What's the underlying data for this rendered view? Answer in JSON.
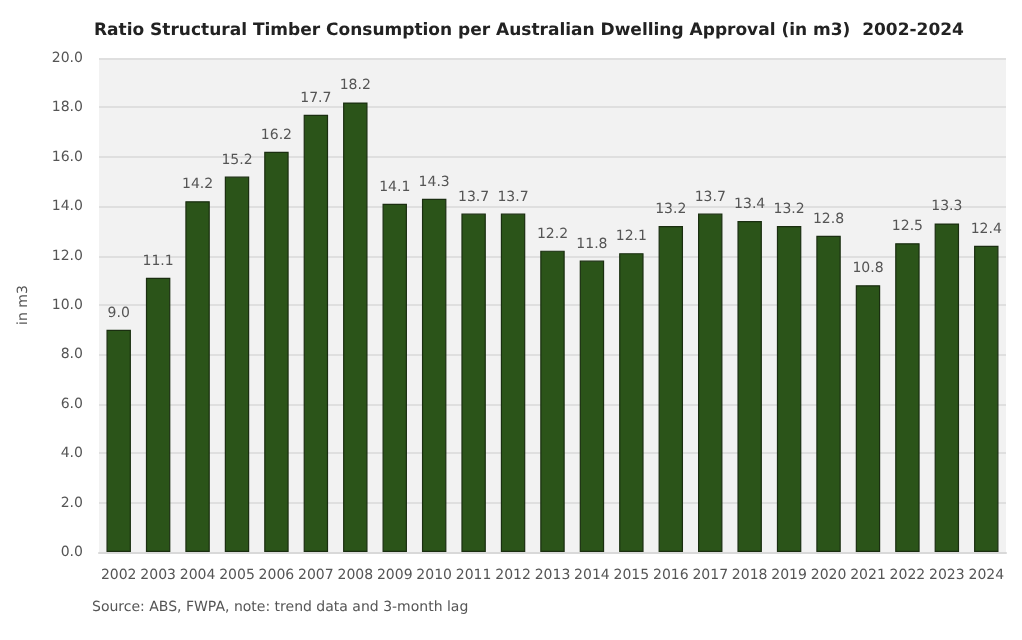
{
  "chart_data": {
    "type": "bar",
    "title": "Ratio Structural Timber Consumption per Australian Dwelling Approval (in m3)  2002-2024",
    "ylabel": "in m3",
    "categories": [
      "2002",
      "2003",
      "2004",
      "2005",
      "2006",
      "2007",
      "2008",
      "2009",
      "2010",
      "2011",
      "2012",
      "2013",
      "2014",
      "2015",
      "2016",
      "2017",
      "2018",
      "2019",
      "2020",
      "2021",
      "2022",
      "2023",
      "2024"
    ],
    "values": [
      9.0,
      11.1,
      14.2,
      15.2,
      16.2,
      17.7,
      18.2,
      14.1,
      14.3,
      13.7,
      13.7,
      12.2,
      11.8,
      12.1,
      13.2,
      13.7,
      13.4,
      13.2,
      12.8,
      10.8,
      12.5,
      13.3,
      12.4
    ],
    "color": "#2b5419",
    "ylim": [
      0,
      20
    ],
    "yticks": [
      {
        "value": 0,
        "label": "0.0"
      },
      {
        "value": 2,
        "label": "2.0"
      },
      {
        "value": 4,
        "label": "4.0"
      },
      {
        "value": 6,
        "label": "6.0"
      },
      {
        "value": 8,
        "label": "8.0"
      },
      {
        "value": 10,
        "label": "10.0"
      },
      {
        "value": 12,
        "label": "12.0"
      },
      {
        "value": 14,
        "label": "14.0"
      },
      {
        "value": 16,
        "label": "16.0"
      },
      {
        "value": 18,
        "label": "18.0"
      },
      {
        "value": 20,
        "label": "20.0"
      }
    ],
    "grid": "y",
    "value_labels": [
      "9.0",
      "11.1",
      "14.2",
      "15.2",
      "16.2",
      "17.7",
      "18.2",
      "14.1",
      "14.3",
      "13.7",
      "13.7",
      "12.2",
      "11.8",
      "12.1",
      "13.2",
      "13.7",
      "13.4",
      "13.2",
      "12.8",
      "10.8",
      "12.5",
      "13.3",
      "12.4"
    ],
    "annotations": [
      "Source: ABS, FWPA, note: trend data and 3-month lag"
    ]
  }
}
